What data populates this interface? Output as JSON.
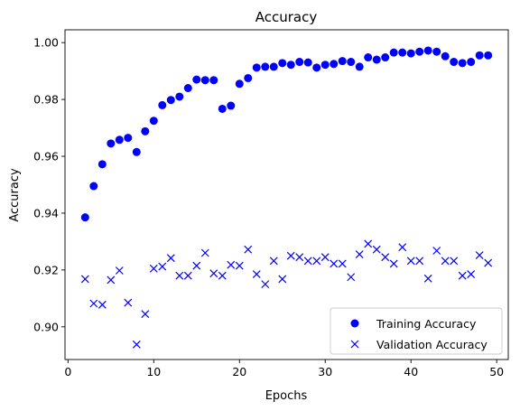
{
  "chart_data": {
    "type": "scatter",
    "title": "Accuracy",
    "xlabel": "Epochs",
    "ylabel": "Accuracy",
    "xlim": [
      -0.35,
      51.35
    ],
    "ylim": [
      0.8885,
      1.0045
    ],
    "xticks": [
      0,
      10,
      20,
      30,
      40,
      50
    ],
    "yticks": [
      0.9,
      0.92,
      0.94,
      0.96,
      0.98,
      1.0
    ],
    "ytick_labels": [
      "0.90",
      "0.92",
      "0.94",
      "0.96",
      "0.98",
      "1.00"
    ],
    "grid": false,
    "legend_position": "lower-right",
    "x": [
      2,
      3,
      4,
      5,
      6,
      7,
      8,
      9,
      10,
      11,
      12,
      13,
      14,
      15,
      16,
      17,
      18,
      19,
      20,
      21,
      22,
      23,
      24,
      25,
      26,
      27,
      28,
      29,
      30,
      31,
      32,
      33,
      34,
      35,
      36,
      37,
      38,
      39,
      40,
      41,
      42,
      43,
      44,
      45,
      46,
      47,
      48,
      49
    ],
    "series": [
      {
        "name": "Training Accuracy",
        "marker": "circle",
        "color": "#0000ff",
        "values": [
          0.9385,
          0.9495,
          0.9572,
          0.9645,
          0.9658,
          0.9665,
          0.9615,
          0.9688,
          0.9725,
          0.978,
          0.9798,
          0.981,
          0.984,
          0.987,
          0.9868,
          0.9868,
          0.9767,
          0.9778,
          0.9855,
          0.9875,
          0.9912,
          0.9915,
          0.9915,
          0.9928,
          0.9922,
          0.9932,
          0.993,
          0.9912,
          0.9922,
          0.9925,
          0.9935,
          0.9932,
          0.9915,
          0.9948,
          0.994,
          0.9948,
          0.9965,
          0.9965,
          0.9962,
          0.9968,
          0.9972,
          0.9968,
          0.9952,
          0.9932,
          0.9928,
          0.9932,
          0.9955,
          0.9955
        ]
      },
      {
        "name": "Validation Accuracy",
        "marker": "x",
        "color": "#0000ff",
        "values": [
          0.9168,
          0.9082,
          0.9078,
          0.9165,
          0.9198,
          0.9085,
          0.8938,
          0.9045,
          0.9205,
          0.9212,
          0.9242,
          0.918,
          0.918,
          0.9215,
          0.926,
          0.9188,
          0.918,
          0.9218,
          0.9215,
          0.9272,
          0.9185,
          0.915,
          0.9232,
          0.9168,
          0.925,
          0.9245,
          0.9232,
          0.9232,
          0.9245,
          0.9222,
          0.9222,
          0.9175,
          0.9255,
          0.9292,
          0.9272,
          0.9245,
          0.9222,
          0.928,
          0.9232,
          0.9232,
          0.917,
          0.9268,
          0.9232,
          0.9232,
          0.918,
          0.9185,
          0.9252,
          0.9225
        ]
      }
    ]
  }
}
